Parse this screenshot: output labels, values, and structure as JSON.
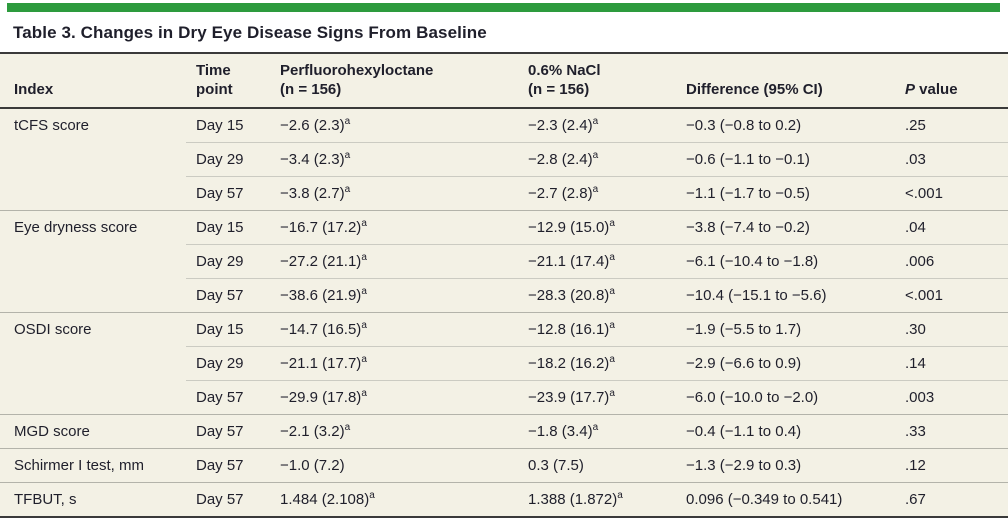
{
  "accent_color": "#2d9b3e",
  "band_background": "#f3f1e5",
  "rule_color": "#3a3a3a",
  "title": "Table 3. Changes in Dry Eye Disease Signs From Baseline",
  "table": {
    "columns": [
      {
        "id": "index",
        "label_lines": [
          "Index"
        ]
      },
      {
        "id": "time_point",
        "label_lines": [
          "Time",
          "point"
        ]
      },
      {
        "id": "pfho",
        "label_lines": [
          "Perfluorohexyloctane",
          "(n = 156)"
        ]
      },
      {
        "id": "nacl",
        "label_lines": [
          "0.6% NaCl",
          "(n = 156)"
        ]
      },
      {
        "id": "difference",
        "label_lines": [
          "Difference (95% CI)"
        ]
      },
      {
        "id": "p_value",
        "label_lines": [
          "P value"
        ],
        "italic_prefix_chars": 1
      }
    ],
    "footnote_marker": "ᵃ",
    "rows": [
      {
        "section_start": true,
        "index": "tCFS score",
        "time_point": "Day 15",
        "pfho": "−2.6 (2.3)ᵃ",
        "nacl": "−2.3 (2.4)ᵃ",
        "difference": "−0.3 (−0.8 to 0.2)",
        "p_value": ".25"
      },
      {
        "section_start": false,
        "index": "",
        "time_point": "Day 29",
        "pfho": "−3.4 (2.3)ᵃ",
        "nacl": "−2.8 (2.4)ᵃ",
        "difference": "−0.6 (−1.1 to −0.1)",
        "p_value": ".03"
      },
      {
        "section_start": false,
        "index": "",
        "time_point": "Day 57",
        "pfho": "−3.8 (2.7)ᵃ",
        "nacl": "−2.7 (2.8)ᵃ",
        "difference": "−1.1 (−1.7 to −0.5)",
        "p_value": "<.001"
      },
      {
        "section_start": true,
        "index": "Eye dryness score",
        "time_point": "Day 15",
        "pfho": "−16.7 (17.2)ᵃ",
        "nacl": "−12.9 (15.0)ᵃ",
        "difference": "−3.8 (−7.4 to −0.2)",
        "p_value": ".04"
      },
      {
        "section_start": false,
        "index": "",
        "time_point": "Day 29",
        "pfho": "−27.2 (21.1)ᵃ",
        "nacl": "−21.1 (17.4)ᵃ",
        "difference": "−6.1 (−10.4 to −1.8)",
        "p_value": ".006"
      },
      {
        "section_start": false,
        "index": "",
        "time_point": "Day 57",
        "pfho": "−38.6 (21.9)ᵃ",
        "nacl": "−28.3 (20.8)ᵃ",
        "difference": "−10.4 (−15.1 to −5.6)",
        "p_value": "<.001"
      },
      {
        "section_start": true,
        "index": "OSDI score",
        "time_point": "Day 15",
        "pfho": "−14.7 (16.5)ᵃ",
        "nacl": "−12.8 (16.1)ᵃ",
        "difference": "−1.9 (−5.5 to 1.7)",
        "p_value": ".30"
      },
      {
        "section_start": false,
        "index": "",
        "time_point": "Day 29",
        "pfho": "−21.1 (17.7)ᵃ",
        "nacl": "−18.2 (16.2)ᵃ",
        "difference": "−2.9 (−6.6 to 0.9)",
        "p_value": ".14"
      },
      {
        "section_start": false,
        "index": "",
        "time_point": "Day 57",
        "pfho": "−29.9 (17.8)ᵃ",
        "nacl": "−23.9 (17.7)ᵃ",
        "difference": "−6.0 (−10.0 to −2.0)",
        "p_value": ".003"
      },
      {
        "section_start": true,
        "index": "MGD score",
        "time_point": "Day 57",
        "pfho": "−2.1 (3.2)ᵃ",
        "nacl": "−1.8 (3.4)ᵃ",
        "difference": "−0.4 (−1.1 to 0.4)",
        "p_value": ".33"
      },
      {
        "section_start": true,
        "index": "Schirmer I test, mm",
        "time_point": "Day 57",
        "pfho": "−1.0 (7.2)",
        "nacl": "0.3 (7.5)",
        "difference": "−1.3 (−2.9 to 0.3)",
        "p_value": ".12"
      },
      {
        "section_start": true,
        "index": "TFBUT, s",
        "time_point": "Day 57",
        "pfho": "1.484 (2.108)ᵃ",
        "nacl": "1.388 (1.872)ᵃ",
        "difference": "0.096 (−0.349 to 0.541)",
        "p_value": ".67"
      }
    ]
  }
}
